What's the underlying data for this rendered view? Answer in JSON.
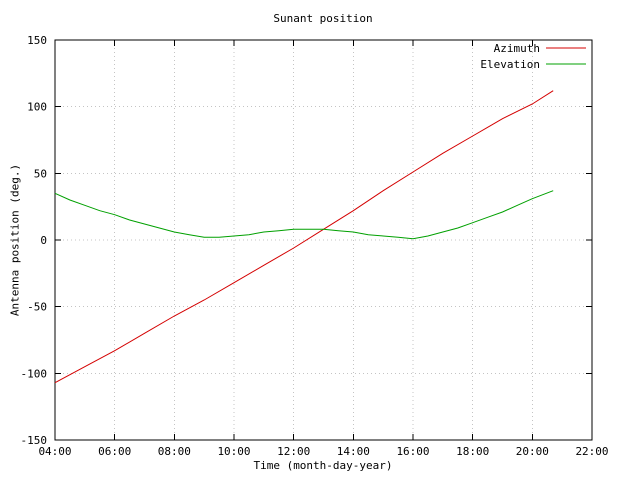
{
  "chart_data": {
    "type": "line",
    "title": "Sunant position",
    "xlabel": "Time (month-day-year)",
    "ylabel": "Antenna position (deg.)",
    "xlim": [
      4,
      22
    ],
    "ylim": [
      -150,
      150
    ],
    "grid": true,
    "legend_position": "top-right",
    "x_ticks": [
      {
        "value": 4,
        "label": "04:00"
      },
      {
        "value": 6,
        "label": "06:00"
      },
      {
        "value": 8,
        "label": "08:00"
      },
      {
        "value": 10,
        "label": "10:00"
      },
      {
        "value": 12,
        "label": "12:00"
      },
      {
        "value": 14,
        "label": "14:00"
      },
      {
        "value": 16,
        "label": "16:00"
      },
      {
        "value": 18,
        "label": "18:00"
      },
      {
        "value": 20,
        "label": "20:00"
      },
      {
        "value": 22,
        "label": "22:00"
      }
    ],
    "y_ticks": [
      {
        "value": -150,
        "label": "-150"
      },
      {
        "value": -100,
        "label": "-100"
      },
      {
        "value": -50,
        "label": "-50"
      },
      {
        "value": 0,
        "label": "0"
      },
      {
        "value": 50,
        "label": "50"
      },
      {
        "value": 100,
        "label": "100"
      },
      {
        "value": 150,
        "label": "150"
      }
    ],
    "series": [
      {
        "name": "Azimuth",
        "color": "#d40000",
        "x": [
          4,
          5,
          6,
          7,
          8,
          9,
          10,
          11,
          12,
          13,
          14,
          15,
          16,
          17,
          18,
          19,
          20,
          20.7
        ],
        "y": [
          -107,
          -95,
          -83,
          -70,
          -57,
          -45,
          -32,
          -19,
          -6,
          8,
          22,
          37,
          51,
          65,
          78,
          91,
          102,
          112
        ]
      },
      {
        "name": "Elevation",
        "color": "#00a000",
        "x": [
          4,
          4.5,
          5,
          5.5,
          6,
          6.5,
          7,
          7.5,
          8,
          8.5,
          9,
          9.5,
          10,
          10.5,
          11,
          11.5,
          12,
          12.5,
          13,
          13.5,
          14,
          14.5,
          15,
          15.5,
          16,
          16.5,
          17,
          17.5,
          18,
          18.5,
          19,
          19.5,
          20,
          20.7
        ],
        "y": [
          35,
          30,
          26,
          22,
          19,
          15,
          12,
          9,
          6,
          4,
          2,
          2,
          3,
          4,
          6,
          7,
          8,
          8,
          8,
          7,
          6,
          4,
          3,
          2,
          1,
          3,
          6,
          9,
          13,
          17,
          21,
          26,
          31,
          37
        ]
      }
    ]
  },
  "colors": {
    "background": "#ffffff",
    "axis": "#000000",
    "grid": "#c4c4c4"
  }
}
